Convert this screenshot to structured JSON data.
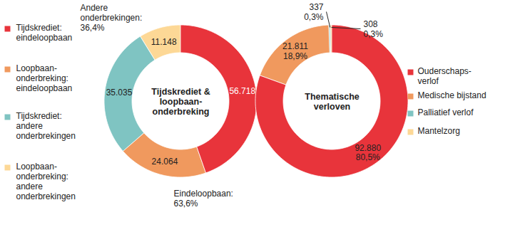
{
  "chart_data": [
    {
      "type": "pie",
      "title": "Tijdskrediet &\nloopbaan-\nonderbreking",
      "categories": [
        "Tijdskrediet:\neindeloopbaan",
        "Loopbaan-\nonderbreking:\neindeloopbaan",
        "Tijdskrediet:\nandere\nonderbrekingen",
        "Loopbaan-\nonderbreking:\nandere\nonderbrekingen"
      ],
      "values": [
        56718,
        24064,
        35035,
        11148
      ],
      "value_labels": [
        "56.718",
        "24.064",
        "35.035",
        "11.148"
      ],
      "colors": [
        "#e8343b",
        "#f0995e",
        "#7fc4c2",
        "#fdd896"
      ],
      "data_labels": true,
      "legend": "left",
      "groups": [
        {
          "label": "Eindeloopbaan:",
          "percent": 63.6,
          "percent_label": "63,6%"
        },
        {
          "label": "Andere\nonderbrekingen:",
          "percent": 36.4,
          "percent_label": "36,4%"
        }
      ]
    },
    {
      "type": "pie",
      "title": "Thematische\nverloven",
      "categories": [
        "Ouderschaps-\nverlof",
        "Medische bijstand",
        "Palliatief verlof",
        "Mantelzorg"
      ],
      "values": [
        92880,
        21811,
        337,
        308
      ],
      "value_labels": [
        "92.880",
        "21.811",
        "337",
        "308"
      ],
      "percentages": [
        80.5,
        18.9,
        0.3,
        0.3
      ],
      "percent_labels": [
        "80,5%",
        "18,9%",
        "0,3%",
        "0,3%"
      ],
      "colors": [
        "#e8343b",
        "#f0995e",
        "#7fc4c2",
        "#fdd896"
      ],
      "data_labels": true,
      "legend": "right"
    }
  ]
}
